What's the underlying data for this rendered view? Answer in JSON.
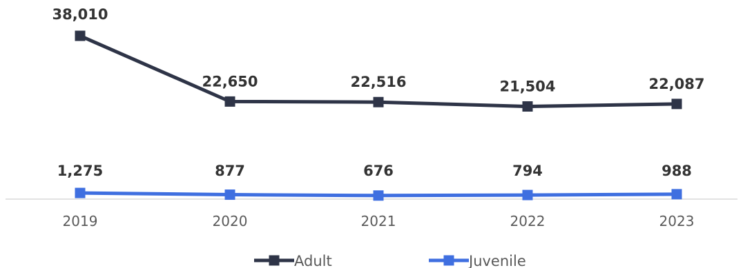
{
  "chart_data": {
    "type": "line",
    "x": [
      "2019",
      "2020",
      "2021",
      "2022",
      "2023"
    ],
    "series": [
      {
        "name": "Adult",
        "color": "#2e3447",
        "values": [
          38010,
          22650,
          22516,
          21504,
          22087
        ],
        "labels": [
          "38,010",
          "22,650",
          "22,516",
          "21,504",
          "22,087"
        ]
      },
      {
        "name": "Juvenile",
        "color": "#3f6fe0",
        "values": [
          1275,
          877,
          676,
          794,
          988
        ],
        "labels": [
          "1,275",
          "877",
          "676",
          "794",
          "988"
        ]
      }
    ],
    "title": "",
    "xlabel": "",
    "ylabel": "",
    "ylim": [
      0,
      40000
    ],
    "grid": false,
    "y_axis_visible": false,
    "marker": "square",
    "legend_position": "bottom"
  }
}
